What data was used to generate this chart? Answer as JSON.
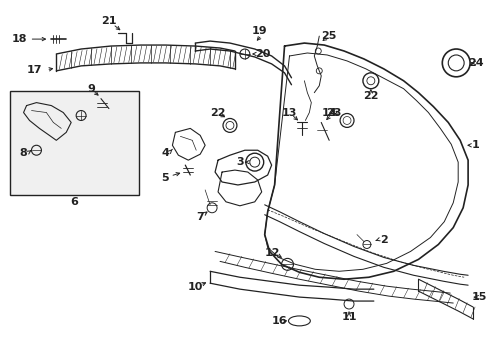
{
  "bg_color": "#ffffff",
  "lc": "#222222",
  "figsize": [
    4.89,
    3.6
  ],
  "dpi": 100
}
